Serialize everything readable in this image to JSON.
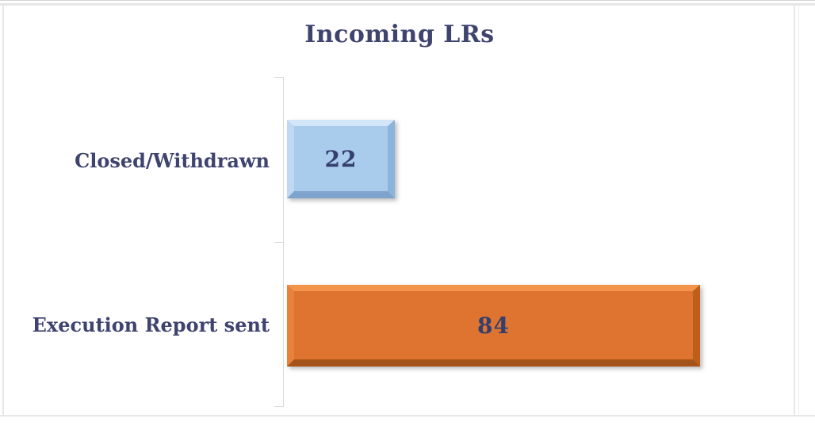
{
  "page": {
    "background": "#ffffff",
    "frame_border_color": "#e6e6e6"
  },
  "chart_data": {
    "type": "bar",
    "orientation": "horizontal",
    "title": "Incoming LRs",
    "categories": [
      "Closed/Withdrawn",
      "Execution Report sent"
    ],
    "values": [
      22,
      84
    ],
    "data_labels": [
      "22",
      "84"
    ],
    "bar_colors": [
      "#a9cbec",
      "#de7430"
    ],
    "bar_bevel": "3d-beveled",
    "text_color": "#3e436f",
    "data_label_color": "#343f6e",
    "axis_line_color": "#d9d9d9",
    "xlabel": "",
    "ylabel": "",
    "xlim": [
      0,
      100
    ],
    "x_tick_labels_visible": false,
    "grid": "off",
    "legend": "none"
  }
}
